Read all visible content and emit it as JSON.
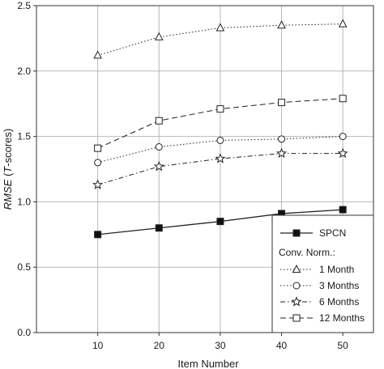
{
  "chart_data": {
    "type": "line",
    "title": "",
    "xlabel": "Item Number",
    "ylabel": "RMSE (T-scores)",
    "ylabel_parts": {
      "italic": "RMSE",
      "open": " (",
      "italic2": "T",
      "rest": "-scores)"
    },
    "x": [
      10,
      20,
      30,
      40,
      50
    ],
    "x_ticks": [
      "10",
      "20",
      "30",
      "40",
      "50"
    ],
    "y_ticks": [
      "0.0",
      "0.5",
      "1.0",
      "1.5",
      "2.0",
      "2.5"
    ],
    "xlim": [
      0,
      55
    ],
    "ylim": [
      0,
      2.5
    ],
    "grid": true,
    "legend_position": "bottom-right",
    "legend_subtitle": "Conv. Norm.:",
    "series": [
      {
        "name": "SPCN",
        "marker": "filled-square",
        "dash": "solid",
        "values": [
          0.75,
          0.8,
          0.85,
          0.91,
          0.94
        ]
      },
      {
        "name": "1 Month",
        "marker": "triangle",
        "dash": "dotted",
        "values": [
          2.12,
          2.26,
          2.33,
          2.35,
          2.36
        ]
      },
      {
        "name": "3 Months",
        "marker": "circle",
        "dash": "dotted",
        "values": [
          1.3,
          1.42,
          1.47,
          1.48,
          1.5
        ]
      },
      {
        "name": "6 Months",
        "marker": "star",
        "dash": "dash-dot",
        "values": [
          1.13,
          1.27,
          1.33,
          1.37,
          1.37
        ]
      },
      {
        "name": "12 Months",
        "marker": "square",
        "dash": "dashed",
        "values": [
          1.41,
          1.62,
          1.71,
          1.76,
          1.79
        ]
      }
    ]
  }
}
